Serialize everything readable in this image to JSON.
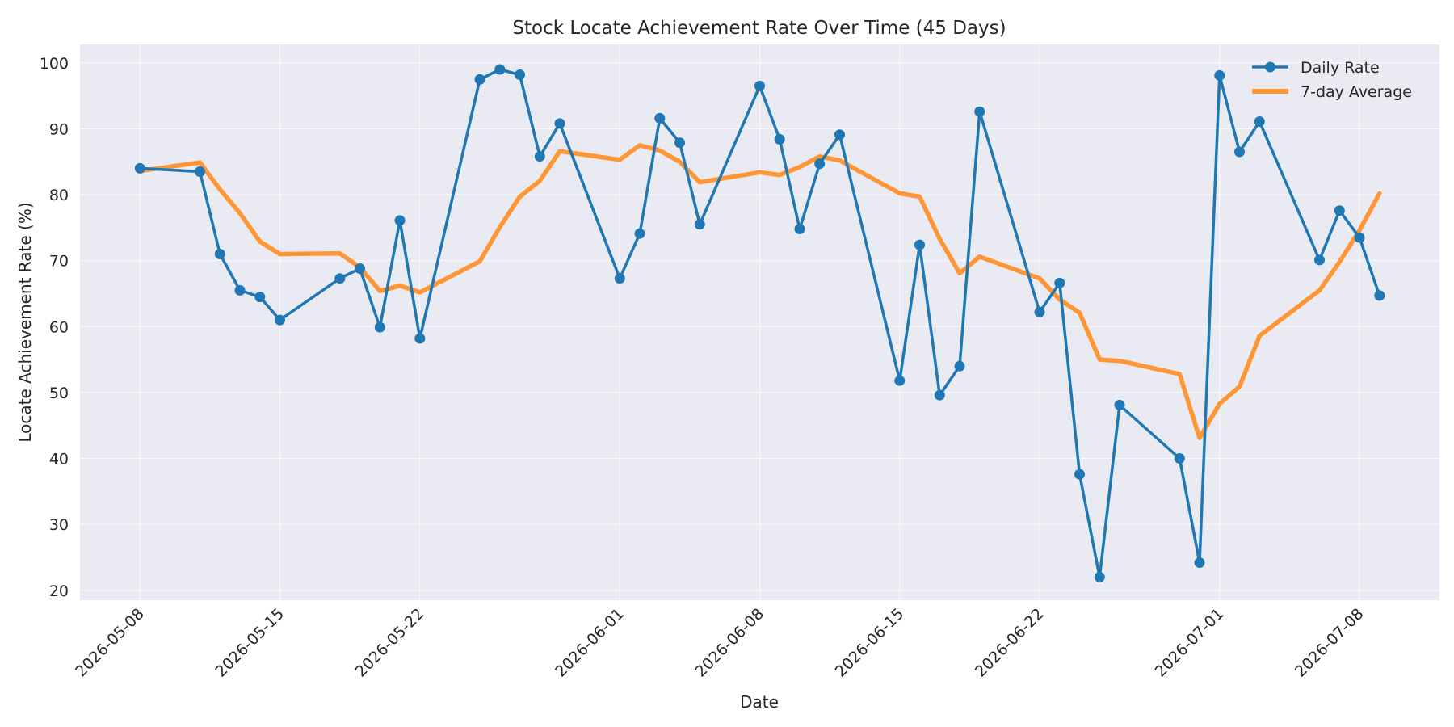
{
  "chart_data": {
    "type": "line",
    "title": "Stock Locate Achievement Rate Over Time (45 Days)",
    "xlabel": "Date",
    "ylabel": "Locate Achievement Rate (%)",
    "ylim": [
      18.5,
      102.8
    ],
    "xlim": [
      "2026-05-05",
      "2026-07-12"
    ],
    "y_ticks": [
      20,
      30,
      40,
      50,
      60,
      70,
      80,
      90,
      100
    ],
    "x_ticks": [
      "2026-05-08",
      "2026-05-15",
      "2026-05-22",
      "2026-06-01",
      "2026-06-08",
      "2026-06-15",
      "2026-06-22",
      "2026-07-01",
      "2026-07-08"
    ],
    "grid": true,
    "legend_position": "top-right",
    "colors": {
      "plot_background": "#eaeaf2",
      "daily": "#1f77b4",
      "average": "#ff7f0e"
    },
    "x": [
      "2026-05-08",
      "2026-05-11",
      "2026-05-12",
      "2026-05-13",
      "2026-05-14",
      "2026-05-15",
      "2026-05-18",
      "2026-05-19",
      "2026-05-20",
      "2026-05-21",
      "2026-05-22",
      "2026-05-25",
      "2026-05-26",
      "2026-05-27",
      "2026-05-28",
      "2026-05-29",
      "2026-06-01",
      "2026-06-02",
      "2026-06-03",
      "2026-06-04",
      "2026-06-05",
      "2026-06-08",
      "2026-06-09",
      "2026-06-10",
      "2026-06-11",
      "2026-06-12",
      "2026-06-15",
      "2026-06-16",
      "2026-06-17",
      "2026-06-18",
      "2026-06-19",
      "2026-06-22",
      "2026-06-23",
      "2026-06-24",
      "2026-06-25",
      "2026-06-26",
      "2026-06-29",
      "2026-06-30",
      "2026-07-01",
      "2026-07-02",
      "2026-07-03",
      "2026-07-06",
      "2026-07-07",
      "2026-07-08",
      "2026-07-09"
    ],
    "series": [
      {
        "name": "Daily Rate",
        "values": [
          84.0,
          83.5,
          71.0,
          65.5,
          64.5,
          61.0,
          67.3,
          68.8,
          59.9,
          76.1,
          58.2,
          97.5,
          99.0,
          98.2,
          85.8,
          90.8,
          67.3,
          74.1,
          91.6,
          87.9,
          75.5,
          96.5,
          88.4,
          74.8,
          84.7,
          89.1,
          51.8,
          72.4,
          49.6,
          54.0,
          92.6,
          62.2,
          66.6,
          37.6,
          22.0,
          48.1,
          40.0,
          24.2,
          98.1,
          86.5,
          91.1,
          70.1,
          77.6,
          73.5,
          64.7
        ]
      },
      {
        "name": "7-day Average",
        "values": [
          83.6,
          84.9,
          80.8,
          77.2,
          72.9,
          71.0,
          71.1,
          69.0,
          65.4,
          66.2,
          65.2,
          69.9,
          75.1,
          79.7,
          82.1,
          86.6,
          85.3,
          87.5,
          86.7,
          85.0,
          81.9,
          83.4,
          83.0,
          84.2,
          85.8,
          85.2,
          80.2,
          79.7,
          73.3,
          68.1,
          70.6,
          67.3,
          64.1,
          62.1,
          55.0,
          54.8,
          52.8,
          43.1,
          48.3,
          50.9,
          58.6,
          65.5,
          69.8,
          74.6,
          80.2
        ]
      }
    ]
  }
}
